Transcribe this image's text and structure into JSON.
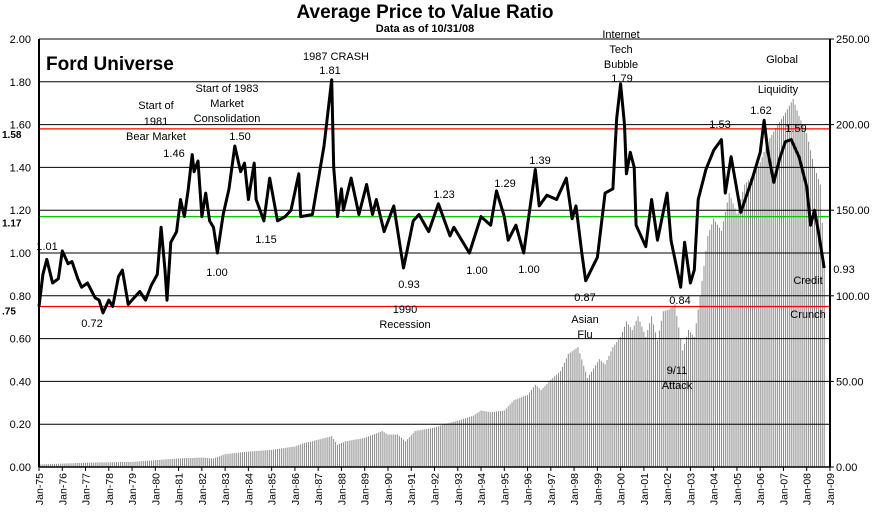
{
  "chart_data": {
    "type": "line+bar",
    "title": "Average Price to Value Ratio",
    "subtitle": "Data as of 10/31/08",
    "inset_label": "Ford Universe",
    "left_axis": {
      "ylim": [
        0,
        2
      ],
      "ticks": [
        "0.00",
        "0.20",
        "0.40",
        "0.60",
        "0.80",
        "1.00",
        "1.20",
        "1.40",
        "1.60",
        "1.80",
        "2.00"
      ]
    },
    "right_axis": {
      "ylim": [
        0,
        250
      ],
      "ticks": [
        "0.00",
        "50.00",
        "100.00",
        "150.00",
        "200.00",
        "250.00"
      ]
    },
    "x_ticks": [
      "Jan-75",
      "Jan-76",
      "Jan-77",
      "Jan-78",
      "Jan-79",
      "Jan-80",
      "Jan-81",
      "Jan-82",
      "Jan-83",
      "Jan-84",
      "Jan-85",
      "Jan-86",
      "Jan-87",
      "Jan-88",
      "Jan-89",
      "Jan-90",
      "Jan-91",
      "Jan-92",
      "Jan-93",
      "Jan-94",
      "Jan-95",
      "Jan-96",
      "Jan-97",
      "Jan-98",
      "Jan-99",
      "Jan-00",
      "Jan-01",
      "Jan-02",
      "Jan-03",
      "Jan-04",
      "Jan-05",
      "Jan-06",
      "Jan-07",
      "Jan-08",
      "Jan-09"
    ],
    "grid": true,
    "reference_lines": [
      {
        "label": "1.58",
        "value": 1.58,
        "color": "#ff0000"
      },
      {
        "label": "1.17",
        "value": 1.17,
        "color": "#00cc00"
      },
      {
        "label": ".75",
        "value": 0.75,
        "color": "#ff0000"
      }
    ],
    "ratio_series": {
      "axis": "left",
      "color": "#000000",
      "points": [
        [
          "1975-01",
          0.75
        ],
        [
          "1975-03",
          0.9
        ],
        [
          "1975-05",
          0.97
        ],
        [
          "1975-08",
          0.86
        ],
        [
          "1975-11",
          0.88
        ],
        [
          "1976-01",
          1.01
        ],
        [
          "1976-04",
          0.95
        ],
        [
          "1976-06",
          0.96
        ],
        [
          "1976-09",
          0.88
        ],
        [
          "1976-11",
          0.84
        ],
        [
          "1977-02",
          0.86
        ],
        [
          "1977-06",
          0.79
        ],
        [
          "1977-08",
          0.78
        ],
        [
          "1977-10",
          0.72
        ],
        [
          "1978-01",
          0.78
        ],
        [
          "1978-03",
          0.75
        ],
        [
          "1978-06",
          0.89
        ],
        [
          "1978-08",
          0.92
        ],
        [
          "1978-11",
          0.76
        ],
        [
          "1979-02",
          0.79
        ],
        [
          "1979-05",
          0.82
        ],
        [
          "1979-08",
          0.78
        ],
        [
          "1979-11",
          0.85
        ],
        [
          "1980-02",
          0.9
        ],
        [
          "1980-04",
          1.12
        ],
        [
          "1980-06",
          0.92
        ],
        [
          "1980-07",
          0.78
        ],
        [
          "1980-09",
          1.05
        ],
        [
          "1980-12",
          1.1
        ],
        [
          "1981-02",
          1.25
        ],
        [
          "1981-04",
          1.17
        ],
        [
          "1981-06",
          1.3
        ],
        [
          "1981-08",
          1.46
        ],
        [
          "1981-09",
          1.38
        ],
        [
          "1981-11",
          1.43
        ],
        [
          "1982-01",
          1.17
        ],
        [
          "1982-03",
          1.28
        ],
        [
          "1982-05",
          1.15
        ],
        [
          "1982-07",
          1.12
        ],
        [
          "1982-09",
          1.0
        ],
        [
          "1982-12",
          1.18
        ],
        [
          "1983-03",
          1.3
        ],
        [
          "1983-06",
          1.5
        ],
        [
          "1983-09",
          1.38
        ],
        [
          "1983-11",
          1.42
        ],
        [
          "1984-01",
          1.25
        ],
        [
          "1984-04",
          1.42
        ],
        [
          "1984-05",
          1.25
        ],
        [
          "1984-09",
          1.15
        ],
        [
          "1984-12",
          1.35
        ],
        [
          "1985-04",
          1.15
        ],
        [
          "1985-08",
          1.17
        ],
        [
          "1985-11",
          1.2
        ],
        [
          "1986-03",
          1.37
        ],
        [
          "1986-04",
          1.17
        ],
        [
          "1986-10",
          1.18
        ],
        [
          "1987-04",
          1.5
        ],
        [
          "1987-08",
          1.81
        ],
        [
          "1987-09",
          1.4
        ],
        [
          "1987-11",
          1.17
        ],
        [
          "1988-01",
          1.3
        ],
        [
          "1988-02",
          1.2
        ],
        [
          "1988-06",
          1.35
        ],
        [
          "1988-10",
          1.18
        ],
        [
          "1989-02",
          1.32
        ],
        [
          "1989-05",
          1.18
        ],
        [
          "1989-07",
          1.25
        ],
        [
          "1989-11",
          1.1
        ],
        [
          "1990-04",
          1.22
        ],
        [
          "1990-09",
          0.93
        ],
        [
          "1991-02",
          1.15
        ],
        [
          "1991-05",
          1.18
        ],
        [
          "1991-10",
          1.1
        ],
        [
          "1992-03",
          1.23
        ],
        [
          "1992-09",
          1.08
        ],
        [
          "1992-11",
          1.12
        ],
        [
          "1993-07",
          1.0
        ],
        [
          "1994-01",
          1.17
        ],
        [
          "1994-06",
          1.13
        ],
        [
          "1994-09",
          1.29
        ],
        [
          "1995-01",
          1.17
        ],
        [
          "1995-03",
          1.06
        ],
        [
          "1995-07",
          1.13
        ],
        [
          "1995-11",
          1.0
        ],
        [
          "1996-05",
          1.39
        ],
        [
          "1996-07",
          1.22
        ],
        [
          "1996-11",
          1.27
        ],
        [
          "1997-04",
          1.25
        ],
        [
          "1997-09",
          1.35
        ],
        [
          "1997-12",
          1.16
        ],
        [
          "1998-02",
          1.22
        ],
        [
          "1998-05",
          1.0
        ],
        [
          "1998-07",
          0.87
        ],
        [
          "1999-01",
          0.98
        ],
        [
          "1999-05",
          1.28
        ],
        [
          "1999-09",
          1.3
        ],
        [
          "1999-11",
          1.63
        ],
        [
          "2000-01",
          1.79
        ],
        [
          "2000-03",
          1.6
        ],
        [
          "2000-04",
          1.37
        ],
        [
          "2000-06",
          1.47
        ],
        [
          "2000-08",
          1.4
        ],
        [
          "2000-09",
          1.13
        ],
        [
          "2001-02",
          1.03
        ],
        [
          "2001-05",
          1.25
        ],
        [
          "2001-08",
          1.06
        ],
        [
          "2002-01",
          1.28
        ],
        [
          "2002-03",
          1.06
        ],
        [
          "2002-08",
          0.84
        ],
        [
          "2002-10",
          1.05
        ],
        [
          "2003-01",
          0.86
        ],
        [
          "2003-03",
          0.92
        ],
        [
          "2003-05",
          1.25
        ],
        [
          "2003-09",
          1.39
        ],
        [
          "2004-01",
          1.48
        ],
        [
          "2004-05",
          1.53
        ],
        [
          "2004-07",
          1.28
        ],
        [
          "2004-10",
          1.45
        ],
        [
          "2005-03",
          1.19
        ],
        [
          "2005-09",
          1.35
        ],
        [
          "2006-01",
          1.47
        ],
        [
          "2006-03",
          1.62
        ],
        [
          "2006-05",
          1.47
        ],
        [
          "2006-08",
          1.33
        ],
        [
          "2006-11",
          1.44
        ],
        [
          "2007-02",
          1.52
        ],
        [
          "2007-05",
          1.53
        ],
        [
          "2007-09",
          1.45
        ],
        [
          "2008-01",
          1.31
        ],
        [
          "2008-03",
          1.13
        ],
        [
          "2008-05",
          1.2
        ],
        [
          "2008-07",
          1.1
        ],
        [
          "2008-10",
          0.93
        ]
      ]
    },
    "index_series": {
      "axis": "right",
      "color": "#808080",
      "points": [
        [
          "1975-01",
          1.5
        ],
        [
          "1977-01",
          2.5
        ],
        [
          "1979-01",
          3
        ],
        [
          "1980-01",
          4
        ],
        [
          "1981-01",
          5
        ],
        [
          "1982-01",
          5.5
        ],
        [
          "1982-07",
          5
        ],
        [
          "1983-01",
          7.5
        ],
        [
          "1984-01",
          9
        ],
        [
          "1985-01",
          10
        ],
        [
          "1986-01",
          12
        ],
        [
          "1986-06",
          14
        ],
        [
          "1987-01",
          16
        ],
        [
          "1987-08",
          18
        ],
        [
          "1987-11",
          13
        ],
        [
          "1988-03",
          15
        ],
        [
          "1989-01",
          17
        ],
        [
          "1989-10",
          21
        ],
        [
          "1990-01",
          19
        ],
        [
          "1990-06",
          19
        ],
        [
          "1990-10",
          15
        ],
        [
          "1991-03",
          21
        ],
        [
          "1992-01",
          23
        ],
        [
          "1992-06",
          25
        ],
        [
          "1993-01",
          27
        ],
        [
          "1993-09",
          30
        ],
        [
          "1994-01",
          33
        ],
        [
          "1994-06",
          32
        ],
        [
          "1995-01",
          33
        ],
        [
          "1995-06",
          39
        ],
        [
          "1996-01",
          42
        ],
        [
          "1996-05",
          48
        ],
        [
          "1996-08",
          45
        ],
        [
          "1997-01",
          51
        ],
        [
          "1997-06",
          56
        ],
        [
          "1997-10",
          66
        ],
        [
          "1998-03",
          70
        ],
        [
          "1998-08",
          52
        ],
        [
          "1999-02",
          63
        ],
        [
          "1999-05",
          60
        ],
        [
          "1999-09",
          70
        ],
        [
          "2000-01",
          76
        ],
        [
          "2000-04",
          85
        ],
        [
          "2000-07",
          80
        ],
        [
          "2000-10",
          88
        ],
        [
          "2001-02",
          76
        ],
        [
          "2001-05",
          88
        ],
        [
          "2001-08",
          74
        ],
        [
          "2001-11",
          91
        ],
        [
          "2002-02",
          92
        ],
        [
          "2002-05",
          95
        ],
        [
          "2002-09",
          68
        ],
        [
          "2002-12",
          80
        ],
        [
          "2003-03",
          76
        ],
        [
          "2003-06",
          100
        ],
        [
          "2003-10",
          135
        ],
        [
          "2004-01",
          145
        ],
        [
          "2004-05",
          138
        ],
        [
          "2004-09",
          160
        ],
        [
          "2005-01",
          148
        ],
        [
          "2005-05",
          165
        ],
        [
          "2005-09",
          170
        ],
        [
          "2006-01",
          178
        ],
        [
          "2006-05",
          190
        ],
        [
          "2006-09",
          198
        ],
        [
          "2007-01",
          205
        ],
        [
          "2007-06",
          215
        ],
        [
          "2007-09",
          205
        ],
        [
          "2008-01",
          195
        ],
        [
          "2008-05",
          175
        ],
        [
          "2008-08",
          165
        ],
        [
          "2008-10",
          120
        ]
      ]
    },
    "annotations": [
      "1.01",
      "0.72",
      "Start of",
      "1981",
      "Bear Market",
      "1.46",
      "Start of 1983",
      "Market",
      "Consolidation",
      "1.50",
      "1.00",
      "1.15",
      "1987 CRASH",
      "1.81",
      "0.93",
      "1990",
      "Recession",
      "1.23",
      "1.00",
      "1.29",
      "1.00",
      "1.39",
      "0.87",
      "Internet",
      "Tech",
      "Bubble",
      "1.79",
      "Asian",
      "Flu",
      "0.84",
      "9/11",
      "Attack",
      "1.53",
      "Global",
      "Liquidity",
      "1.62",
      "1.59",
      "0.93",
      "Credit",
      "Crunch"
    ]
  }
}
